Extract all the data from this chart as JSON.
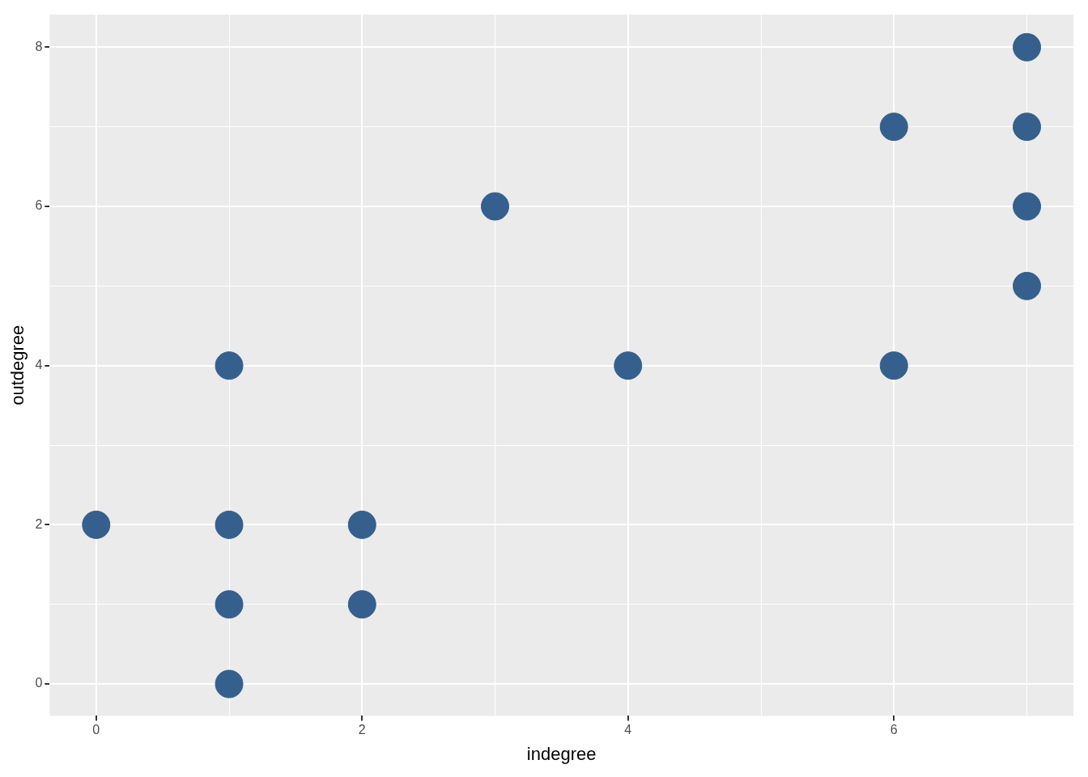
{
  "chart_data": {
    "type": "scatter",
    "xlabel": "indegree",
    "ylabel": "outdegree",
    "x": [
      0,
      1,
      1,
      1,
      1,
      2,
      2,
      3,
      4,
      6,
      6,
      7,
      7,
      7,
      7
    ],
    "series": [
      {
        "color": "#35608d",
        "values": [
          2,
          4,
          2,
          1,
          0,
          2,
          1,
          6,
          4,
          7,
          4,
          8,
          7,
          6,
          5
        ]
      }
    ],
    "xlim": [
      -0.35,
      7.35
    ],
    "ylim": [
      -0.4,
      8.41
    ],
    "xticks": [
      0,
      {
        "value": 1,
        "label": null
      },
      2,
      {
        "value": 3,
        "label": null
      },
      4,
      {
        "value": 5,
        "label": null
      },
      6,
      {
        "value": 7,
        "label": null
      }
    ],
    "yticks": [
      0,
      {
        "value": 1,
        "label": null
      },
      2,
      {
        "value": 3,
        "label": null
      },
      4,
      {
        "value": 5,
        "label": null
      },
      6,
      {
        "value": 7,
        "label": null
      },
      8
    ],
    "grid": true,
    "marker": "circle",
    "legend": false
  }
}
